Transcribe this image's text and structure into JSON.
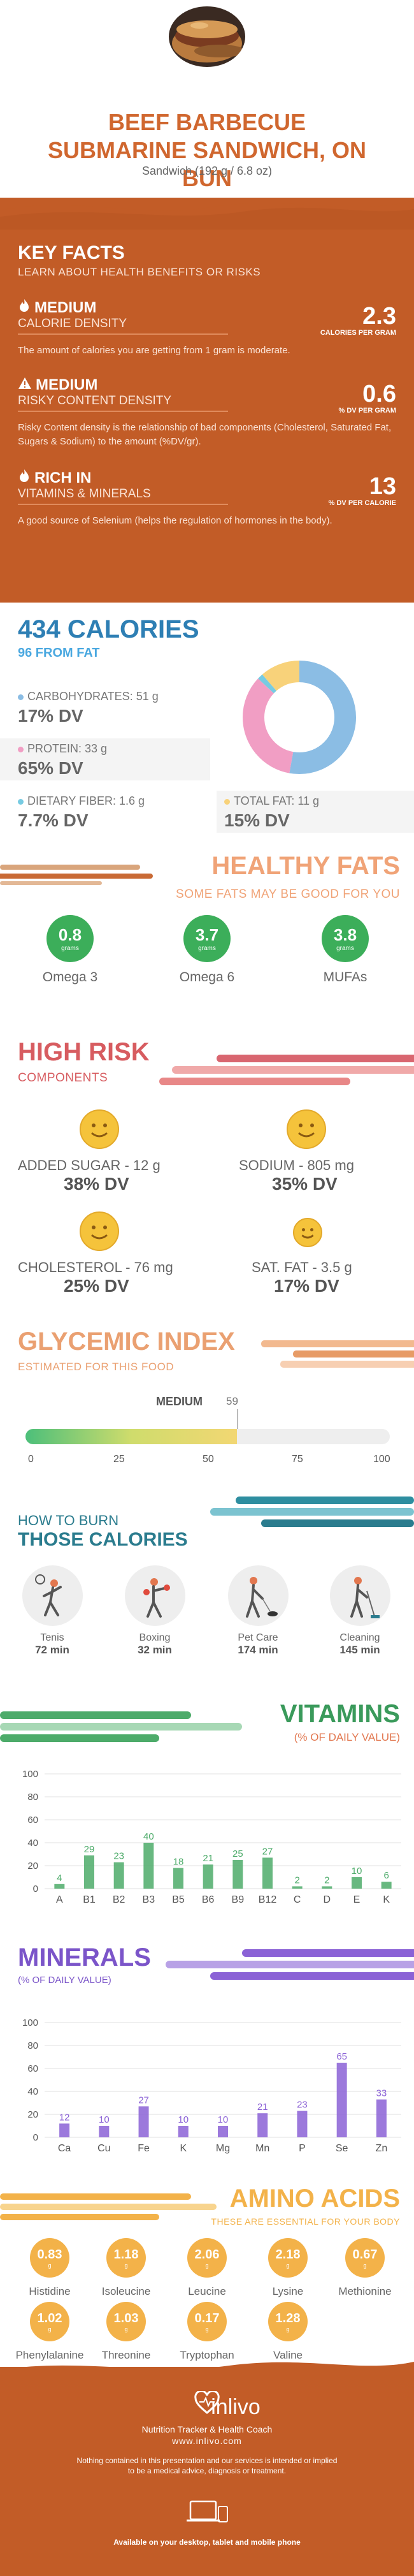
{
  "header": {
    "title_line1": "BEEF BARBECUE",
    "title_line2": "SUBMARINE SANDWICH, ON",
    "title_line3": "BUN",
    "serving": "Sandwich (192 g / 6.8 oz)"
  },
  "key_facts": {
    "heading": "KEY FACTS",
    "subheading": "LEARN ABOUT HEALTH BENEFITS OR RISKS",
    "items": [
      {
        "level": "MEDIUM",
        "label": "CALORIE DENSITY",
        "value": "2.3",
        "unit": "CALORIES PER GRAM",
        "desc": "The amount of calories you are getting from 1 gram is moderate.",
        "icon": "flame-icon"
      },
      {
        "level": "MEDIUM",
        "label": "RISKY CONTENT DENSITY",
        "value": "0.6",
        "unit": "% DV PER GRAM",
        "desc": "Risky Content density is the relationship of bad components (Cholesterol, Saturated Fat, Sugars & Sodium) to the amount (%DV/gr).",
        "icon": "warning-icon"
      },
      {
        "level": "RICH  IN",
        "label": "VITAMINS & MINERALS",
        "value": "13",
        "unit": "% DV PER CALORIE",
        "desc": "A good source of Selenium (helps the regulation of hormones in the body).",
        "icon": "flame-icon"
      }
    ]
  },
  "calories": {
    "title": "434 CALORIES",
    "from_fat": "96 FROM FAT",
    "macros": [
      {
        "label": "CARBOHYDRATES: 51 g",
        "dv": "17% DV",
        "color": "#8bbde4"
      },
      {
        "label": "PROTEIN: 33 g",
        "dv": "65% DV",
        "color": "#f19ec4"
      },
      {
        "label": "DIETARY FIBER: 1.6 g",
        "dv": "7.7% DV",
        "color": "#77cbe2"
      },
      {
        "label": "TOTAL FAT: 11 g",
        "dv": "15% DV",
        "color": "#f8d27a"
      }
    ],
    "donut": [
      {
        "name": "carbohydrates",
        "value": 51,
        "color": "#8bbde4"
      },
      {
        "name": "protein",
        "value": 33,
        "color": "#f19ec4"
      },
      {
        "name": "fiber",
        "value": 1.6,
        "color": "#77cbe2"
      },
      {
        "name": "fat",
        "value": 11,
        "color": "#f8d27a"
      }
    ]
  },
  "healthy_fats": {
    "title": "HEALTHY FATS",
    "subtitle": "SOME FATS MAY BE GOOD FOR YOU",
    "items": [
      {
        "value": "0.8",
        "unit": "grams",
        "name": "Omega 3"
      },
      {
        "value": "3.7",
        "unit": "grams",
        "name": "Omega 6"
      },
      {
        "value": "3.8",
        "unit": "grams",
        "name": "MUFAs"
      }
    ]
  },
  "high_risk": {
    "title": "HIGH RISK",
    "subtitle": "COMPONENTS",
    "items": [
      {
        "label": "ADDED SUGAR - 12 g",
        "dv": "38% DV"
      },
      {
        "label": "SODIUM - 805 mg",
        "dv": "35% DV"
      },
      {
        "label": "CHOLESTEROL - 76 mg",
        "dv": "25% DV"
      },
      {
        "label": "SAT. FAT - 3.5 g",
        "dv": "17% DV"
      }
    ]
  },
  "glycemic": {
    "title": "GLYCEMIC INDEX",
    "subtitle": "ESTIMATED FOR THIS FOOD",
    "level": "MEDIUM",
    "value": "59",
    "ticks": [
      "0",
      "25",
      "50",
      "75",
      "100"
    ]
  },
  "burn": {
    "title1": "HOW TO BURN",
    "title2": "THOSE CALORIES",
    "items": [
      {
        "name": "Tenis",
        "min": "72 min"
      },
      {
        "name": "Boxing",
        "min": "32 min"
      },
      {
        "name": "Pet Care",
        "min": "174 min"
      },
      {
        "name": "Cleaning",
        "min": "145 min"
      }
    ]
  },
  "vitamins": {
    "title": "VITAMINS",
    "subtitle": "(% OF DAILY VALUE)",
    "color": "#4dab6a"
  },
  "minerals": {
    "title": "MINERALS",
    "subtitle": "(% OF DAILY VALUE)",
    "color": "#8b62d6"
  },
  "chart_data": [
    {
      "type": "bar",
      "title": "VITAMINS",
      "categories": [
        "A",
        "B1",
        "B2",
        "B3",
        "B5",
        "B6",
        "B9",
        "B12",
        "C",
        "D",
        "E",
        "K"
      ],
      "values": [
        4,
        29,
        23,
        40,
        18,
        21,
        25,
        27,
        2,
        2,
        10,
        6
      ],
      "ylim": [
        0,
        100
      ],
      "yticks": [
        "0",
        "20",
        "40",
        "60",
        "80",
        "100"
      ]
    },
    {
      "type": "bar",
      "title": "MINERALS",
      "categories": [
        "Ca",
        "Cu",
        "Fe",
        "K",
        "Mg",
        "Mn",
        "P",
        "Se",
        "Zn"
      ],
      "values": [
        12,
        10,
        27,
        10,
        10,
        21,
        23,
        65,
        33
      ],
      "ylim": [
        0,
        100
      ],
      "yticks": [
        "0",
        "20",
        "40",
        "60",
        "80",
        "100"
      ]
    }
  ],
  "amino": {
    "title": "AMINO ACIDS",
    "subtitle": "THESE ARE ESSENTIAL FOR YOUR BODY",
    "items": [
      {
        "value": "0.83",
        "unit": "g",
        "name": "Histidine"
      },
      {
        "value": "1.18",
        "unit": "g",
        "name": "Isoleucine"
      },
      {
        "value": "2.06",
        "unit": "g",
        "name": "Leucine"
      },
      {
        "value": "2.18",
        "unit": "g",
        "name": "Lysine"
      },
      {
        "value": "0.67",
        "unit": "g",
        "name": "Methionine"
      },
      {
        "value": "1.02",
        "unit": "g",
        "name": "Phenylalanine"
      },
      {
        "value": "1.03",
        "unit": "g",
        "name": "Threonine"
      },
      {
        "value": "0.17",
        "unit": "g",
        "name": "Tryptophan"
      },
      {
        "value": "1.28",
        "unit": "g",
        "name": "Valine"
      }
    ]
  },
  "footer": {
    "brand": "inlivo",
    "tagline": "Nutrition Tracker & Health Coach",
    "url": "www.inlivo.com",
    "disclaimer1": "Nothing contained in this presentation and our services is intended or implied",
    "disclaimer2": "to be a medical advice, diagnosis or treatment.",
    "available": "Available on your desktop, tablet and mobile phone"
  }
}
